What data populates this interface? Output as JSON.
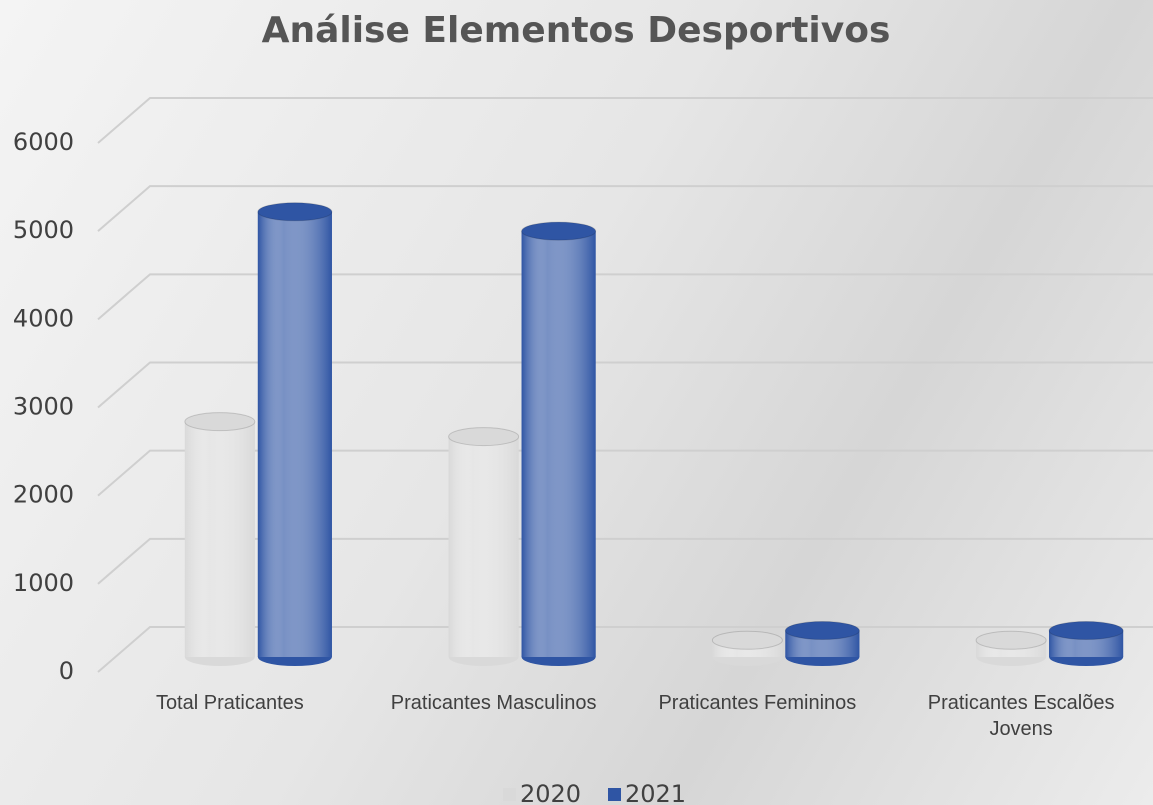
{
  "chart_data": {
    "type": "bar3d",
    "title": "Análise Elementos Desportivos",
    "categories": [
      "Total Praticantes",
      "Praticantes Masculinos",
      "Praticantes Femininos",
      "Praticantes Escalões Jovens"
    ],
    "series": [
      {
        "name": "2020",
        "color": "#d9d9d9",
        "values": [
          2670,
          2500,
          190,
          190
        ]
      },
      {
        "name": "2021",
        "color": "#2f55a4",
        "values": [
          5050,
          4830,
          300,
          300
        ]
      }
    ],
    "ylim": [
      0,
      6000
    ],
    "yticks": [
      0,
      1000,
      2000,
      3000,
      4000,
      5000,
      6000
    ],
    "grid": true,
    "legend": "bottom"
  }
}
